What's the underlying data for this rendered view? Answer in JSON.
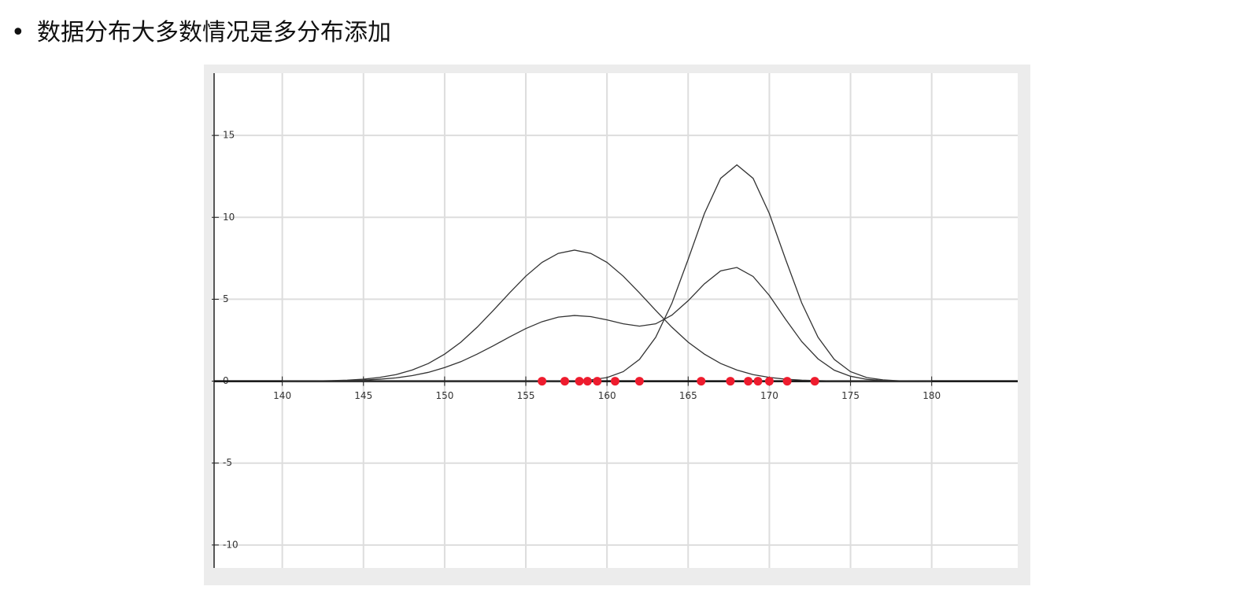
{
  "heading": "数据分布大多数情况是多分布添加",
  "chart_data": {
    "type": "line",
    "x": [
      140,
      141,
      142,
      143,
      144,
      145,
      146,
      147,
      148,
      149,
      150,
      151,
      152,
      153,
      154,
      155,
      156,
      157,
      158,
      159,
      160,
      161,
      162,
      163,
      164,
      165,
      166,
      167,
      168,
      169,
      170,
      171,
      172,
      173,
      174,
      175,
      176,
      177,
      178,
      179,
      180
    ],
    "series": [
      {
        "color": "#333333",
        "values": [
          0,
          0.01,
          0.01,
          0.03,
          0.06,
          0.12,
          0.23,
          0.4,
          0.68,
          1.08,
          1.65,
          2.38,
          3.29,
          4.32,
          5.39,
          6.41,
          7.25,
          7.8,
          8,
          7.8,
          7.25,
          6.41,
          5.39,
          4.32,
          3.29,
          2.38,
          1.65,
          1.08,
          0.68,
          0.4,
          0.23,
          0.12,
          0.06,
          0.03,
          0.01,
          0.01,
          0,
          0,
          0,
          0,
          0
        ]
      },
      {
        "color": "#333333",
        "values": [
          0,
          0,
          0,
          0,
          0,
          0,
          0,
          0,
          0,
          0,
          0,
          0,
          0,
          0,
          0,
          0,
          0,
          0.01,
          0.02,
          0.08,
          0.22,
          0.58,
          1.33,
          2.68,
          4.76,
          7.44,
          10.23,
          12.38,
          13.2,
          12.38,
          10.23,
          7.44,
          4.76,
          2.68,
          1.33,
          0.58,
          0.22,
          0.08,
          0.02,
          0.01,
          0
        ]
      },
      {
        "color": "#333333",
        "values": [
          0,
          0.01,
          0.01,
          0.02,
          0.03,
          0.06,
          0.12,
          0.2,
          0.34,
          0.54,
          0.83,
          1.19,
          1.65,
          2.16,
          2.7,
          3.21,
          3.63,
          3.91,
          4.01,
          3.94,
          3.74,
          3.5,
          3.36,
          3.5,
          4.03,
          4.91,
          5.94,
          6.73,
          6.94,
          6.39,
          5.23,
          3.78,
          2.41,
          1.36,
          0.67,
          0.3,
          0.11,
          0.04,
          0.01,
          0.01,
          0
        ]
      }
    ],
    "points": {
      "color": "#ee1c2e",
      "x": [
        156,
        157.4,
        158.3,
        158.8,
        159.4,
        160.5,
        162,
        165.8,
        167.6,
        168.7,
        169.3,
        170,
        171.1,
        172.8
      ],
      "values": [
        0,
        0,
        0,
        0,
        0,
        0,
        0,
        0,
        0,
        0,
        0,
        0,
        0,
        0
      ]
    },
    "xlim": [
      135.8,
      185.3
    ],
    "ylim": [
      -11.4,
      18.8
    ],
    "xticks": [
      140,
      145,
      150,
      155,
      160,
      165,
      170,
      175,
      180
    ],
    "yticks": [
      -10,
      -5,
      0,
      5,
      10,
      15
    ],
    "grid": true
  }
}
